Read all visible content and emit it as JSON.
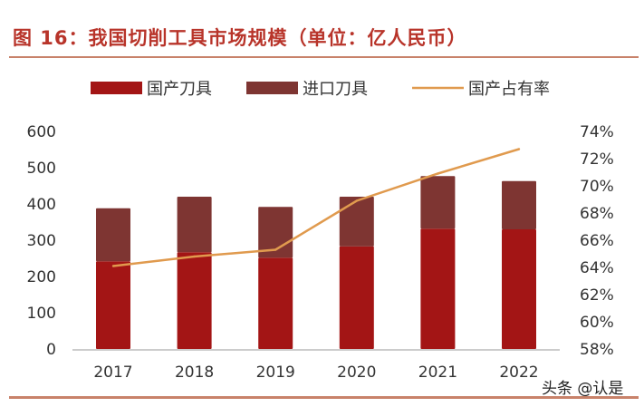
{
  "title": "图 16：我国切削工具市场规模（单位：亿人民币）",
  "watermark": "头条 @认是",
  "chart_data": {
    "type": "bar",
    "stacked": true,
    "categories": [
      "2017",
      "2018",
      "2019",
      "2020",
      "2021",
      "2022"
    ],
    "series": [
      {
        "name": "国产刀具",
        "axis": "left",
        "type": "bar",
        "color": "#a31515",
        "values": [
          242,
          267,
          252,
          283,
          332,
          330
        ]
      },
      {
        "name": "进口刀具",
        "axis": "left",
        "type": "bar",
        "color": "#7e3532",
        "values": [
          146,
          153,
          140,
          137,
          145,
          133
        ]
      },
      {
        "name": "国产占有率",
        "axis": "right",
        "type": "line",
        "color": "#e09a4e",
        "values": [
          64.1,
          64.8,
          65.3,
          68.9,
          70.9,
          72.7
        ]
      }
    ],
    "ylim": [
      0,
      600
    ],
    "yticks": [
      "0",
      "100",
      "200",
      "300",
      "400",
      "500",
      "600"
    ],
    "y2lim": [
      58,
      74
    ],
    "y2ticks": [
      "58%",
      "60%",
      "62%",
      "64%",
      "66%",
      "68%",
      "70%",
      "72%",
      "74%"
    ],
    "legend": "top",
    "grid": false
  }
}
